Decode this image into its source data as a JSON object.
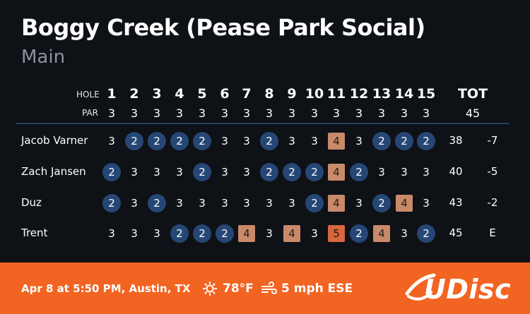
{
  "course": {
    "title": "Boggy Creek (Pease Park Social)",
    "layout": "Main"
  },
  "header": {
    "hole_label": "HOLE",
    "par_label": "PAR",
    "holes": [
      "1",
      "2",
      "3",
      "4",
      "5",
      "6",
      "7",
      "8",
      "9",
      "10",
      "11",
      "12",
      "13",
      "14",
      "15"
    ],
    "pars": [
      "3",
      "3",
      "3",
      "3",
      "3",
      "3",
      "3",
      "3",
      "3",
      "3",
      "3",
      "3",
      "3",
      "3",
      "3"
    ],
    "total_label": "TOT",
    "total_par": "45"
  },
  "players": [
    {
      "name": "Jacob Varner",
      "scores": [
        "3",
        "2",
        "2",
        "2",
        "2",
        "3",
        "3",
        "2",
        "3",
        "3",
        "4",
        "3",
        "2",
        "2",
        "2"
      ],
      "total": "38",
      "relative": "-7"
    },
    {
      "name": "Zach Jansen",
      "scores": [
        "2",
        "3",
        "3",
        "3",
        "2",
        "3",
        "3",
        "2",
        "2",
        "2",
        "4",
        "2",
        "3",
        "3",
        "3"
      ],
      "total": "40",
      "relative": "-5"
    },
    {
      "name": "Duz",
      "scores": [
        "2",
        "3",
        "2",
        "3",
        "3",
        "3",
        "3",
        "3",
        "3",
        "2",
        "4",
        "3",
        "2",
        "4",
        "3"
      ],
      "total": "43",
      "relative": "-2"
    },
    {
      "name": "Trent",
      "scores": [
        "3",
        "3",
        "3",
        "2",
        "2",
        "2",
        "4",
        "3",
        "4",
        "3",
        "5",
        "2",
        "4",
        "3",
        "2"
      ],
      "total": "45",
      "relative": "E"
    }
  ],
  "footer": {
    "date_location": "Apr 8 at 5:50 PM, Austin, TX",
    "temperature": "78°F",
    "wind": "5 mph ESE",
    "sun_icon": "sun-icon",
    "wind_icon": "wind-icon",
    "brand": "UDisc"
  },
  "colors": {
    "background": "#0e1116",
    "birdie": "#264775",
    "bogey": "#c98a6a",
    "double_bogey": "#d8663f",
    "footer": "#f26422"
  }
}
